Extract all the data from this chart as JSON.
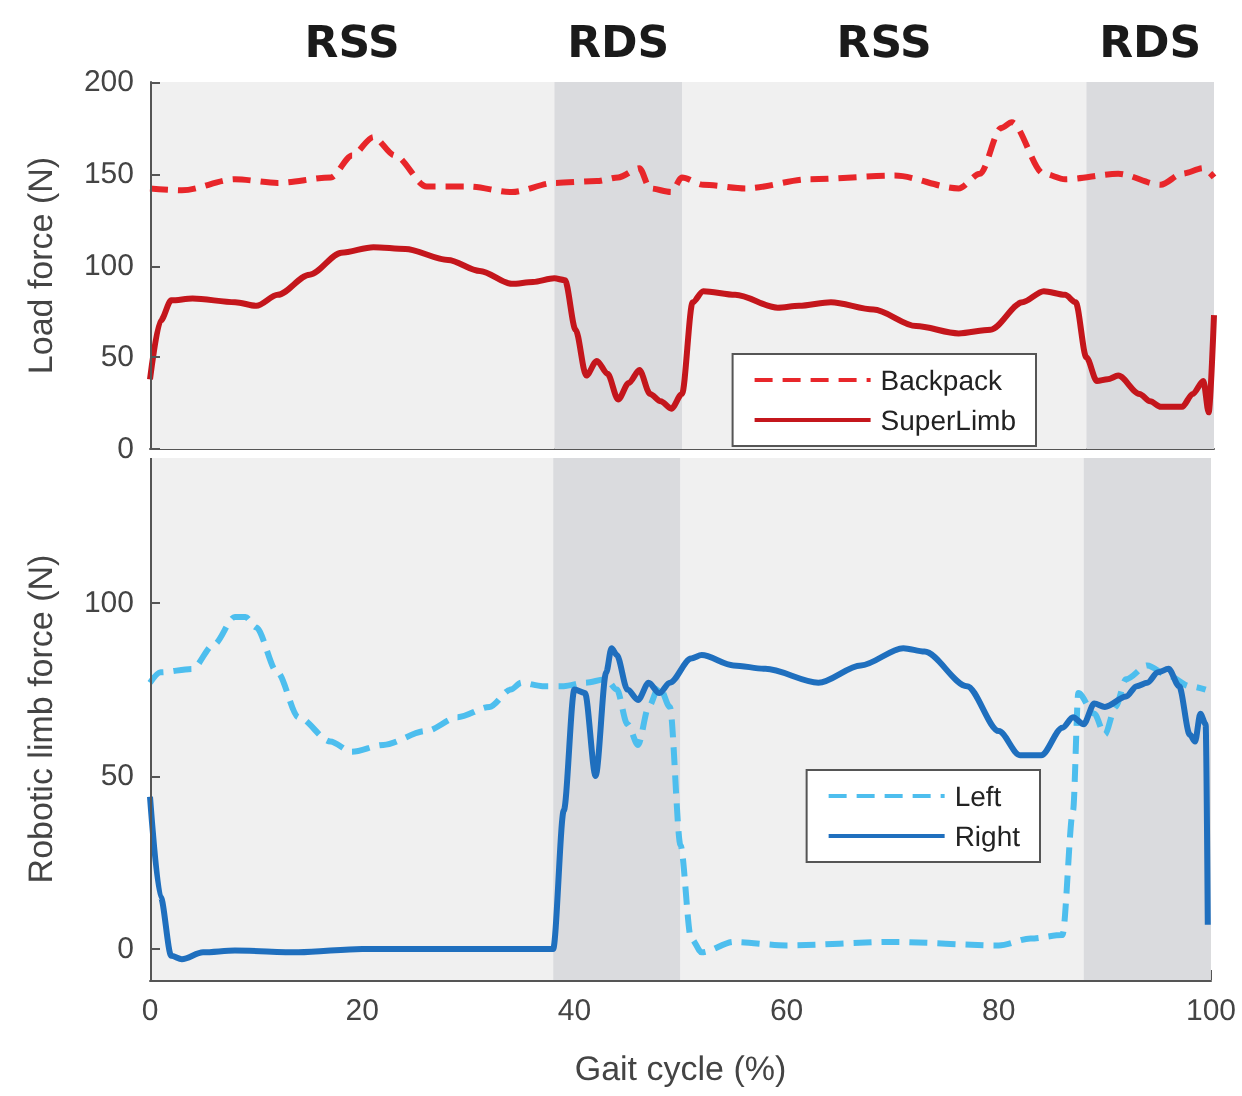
{
  "chart_data": [
    {
      "type": "line",
      "ylabel": "Load force (N)",
      "xlim": [
        0,
        100
      ],
      "ylim": [
        0,
        200
      ],
      "yticks": [
        0,
        50,
        100,
        150,
        200
      ],
      "tick_labels": "y",
      "grid": false,
      "legend": "bottom right",
      "marker": "none",
      "bands": [
        {
          "axis": "x",
          "from": 0,
          "to": 38,
          "label": "RSS",
          "color": "#f0f0f0"
        },
        {
          "axis": "x",
          "from": 38,
          "to": 50,
          "label": "RDS",
          "color": "#dadbde"
        },
        {
          "axis": "x",
          "from": 50,
          "to": 88,
          "label": "RSS",
          "color": "#f0f0f0"
        },
        {
          "axis": "x",
          "from": 88,
          "to": 100,
          "label": "RDS",
          "color": "#dadbde"
        }
      ],
      "series": [
        {
          "name": "Backpack",
          "color": "#e8262a",
          "line_style": "dashed",
          "x": [
            0,
            3,
            8,
            12,
            17,
            19,
            21,
            23,
            26,
            30,
            34,
            38,
            42,
            44,
            46,
            47,
            49,
            50,
            52,
            56,
            62,
            70,
            76,
            78,
            80,
            81,
            84,
            86,
            91,
            95,
            97,
            99,
            100
          ],
          "values": [
            142,
            141,
            147,
            145,
            148,
            160,
            170,
            160,
            143,
            143,
            140,
            145,
            146,
            148,
            153,
            142,
            140,
            148,
            144,
            142,
            147,
            149,
            142,
            150,
            175,
            178,
            150,
            147,
            150,
            144,
            150,
            153,
            148
          ]
        },
        {
          "name": "SuperLimb",
          "color": "#c4161c",
          "line_style": "solid",
          "x": [
            0,
            1,
            2,
            4,
            8,
            10,
            12,
            15,
            18,
            21,
            24,
            28,
            31,
            34,
            36,
            38,
            39,
            40,
            41,
            42,
            43,
            44,
            45,
            46,
            47,
            48,
            49,
            50,
            51,
            52,
            55,
            59,
            61,
            64,
            68,
            72,
            76,
            79,
            82,
            84,
            86,
            87,
            88,
            89,
            90,
            91,
            93,
            94,
            95,
            97,
            98,
            99,
            99.5,
            100
          ],
          "values": [
            38,
            70,
            81,
            82,
            80,
            78,
            84,
            95,
            107,
            110,
            109,
            103,
            97,
            90,
            91,
            93,
            92,
            65,
            40,
            48,
            41,
            27,
            36,
            43,
            30,
            26,
            22,
            30,
            80,
            86,
            84,
            77,
            78,
            80,
            76,
            67,
            63,
            65,
            80,
            86,
            84,
            80,
            50,
            37,
            38,
            40,
            30,
            26,
            23,
            23,
            30,
            37,
            20,
            73
          ]
        }
      ]
    },
    {
      "type": "line",
      "ylabel": "Robotic limb force (N)",
      "xlabel": "Gait cycle (%)",
      "xlim": [
        0,
        100
      ],
      "xticks": [
        0,
        20,
        40,
        60,
        80,
        100
      ],
      "ylim": [
        -9,
        142
      ],
      "yticks": [
        0,
        50,
        100
      ],
      "grid": false,
      "legend": "right",
      "marker": "none",
      "bands": [
        {
          "axis": "x",
          "from": 0,
          "to": 38,
          "color": "#f0f0f0"
        },
        {
          "axis": "x",
          "from": 38,
          "to": 50,
          "color": "#dadbde"
        },
        {
          "axis": "x",
          "from": 50,
          "to": 88,
          "color": "#f0f0f0"
        },
        {
          "axis": "x",
          "from": 88,
          "to": 100,
          "color": "#dadbde"
        }
      ],
      "series": [
        {
          "name": "Left",
          "color": "#4dbeee",
          "line_style": "dashed",
          "x": [
            0,
            1,
            4,
            6,
            8,
            9,
            10,
            12,
            14,
            17,
            19,
            22,
            26,
            29,
            32,
            34,
            35,
            37,
            39,
            41,
            43,
            44,
            45,
            46,
            47,
            48,
            49,
            50,
            51,
            52,
            55,
            60,
            70,
            80,
            83,
            86,
            87,
            87.5,
            89,
            90,
            91,
            92,
            94,
            96,
            98,
            99.5
          ],
          "values": [
            77,
            80,
            81,
            88,
            96,
            96,
            93,
            80,
            67,
            60,
            57,
            59,
            63,
            67,
            70,
            75,
            77,
            76,
            76,
            77,
            78,
            75,
            65,
            59,
            70,
            76,
            70,
            30,
            3,
            -1,
            2,
            1,
            2,
            1,
            3,
            4,
            40,
            74,
            68,
            62,
            70,
            78,
            82,
            79,
            76,
            75
          ]
        },
        {
          "name": "Right",
          "color": "#1f6fbe",
          "line_style": "solid",
          "x": [
            0,
            1,
            2,
            3,
            5,
            8,
            14,
            20,
            30,
            38,
            39,
            40,
            41,
            42,
            43,
            43.5,
            44,
            45,
            46,
            47,
            48,
            49,
            51,
            52,
            55,
            58,
            63,
            67,
            71,
            73,
            77,
            80,
            82,
            84,
            86,
            87,
            88,
            89,
            90,
            92,
            93,
            94,
            95,
            96,
            97,
            98,
            98.5,
            99,
            99.5,
            99.7
          ],
          "values": [
            44,
            15,
            -2,
            -3,
            -1,
            -0.5,
            -1,
            0,
            0,
            0,
            40,
            75,
            74,
            50,
            80,
            87,
            85,
            75,
            72,
            77,
            74,
            77,
            84,
            85,
            82,
            81,
            77,
            82,
            87,
            86,
            76,
            63,
            56,
            56,
            64,
            67,
            65,
            71,
            70,
            73,
            76,
            77,
            80,
            81,
            76,
            62,
            60,
            68,
            65,
            7
          ]
        }
      ]
    }
  ]
}
